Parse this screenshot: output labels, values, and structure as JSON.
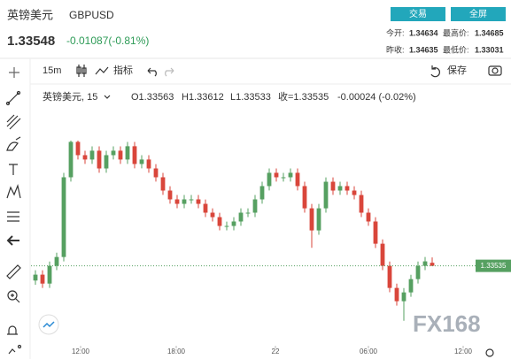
{
  "header": {
    "name": "英镑美元",
    "symbol": "GBPUSD",
    "price": "1.33548",
    "change": "-0.01087(-0.81%)",
    "buttons": [
      "交易",
      "全屏"
    ],
    "stats": [
      [
        "今开:",
        "1.34634",
        "最高价:",
        "1.34685"
      ],
      [
        "昨收:",
        "1.34635",
        "最低价:",
        "1.33031"
      ]
    ]
  },
  "toolbar": {
    "interval": "15m",
    "indicators": "指标",
    "save": "保存"
  },
  "watermark": "FX168",
  "chart_data": {
    "type": "candlestick",
    "legend": {
      "name": "英镑美元, 15",
      "open": "O1.33563",
      "high": "H1.33612",
      "low": "L1.33533",
      "close": "收=1.33535",
      "change": "-0.00024 (-0.02%)"
    },
    "up_color": "#56a061",
    "down_color": "#d9463b",
    "open": [
      1.334,
      1.33454,
      1.33372,
      1.33535,
      1.33616,
      1.34348,
      1.34673,
      1.34551,
      1.34511,
      1.34592,
      1.34429,
      1.34551,
      1.34592,
      1.34511,
      1.34633,
      1.3447,
      1.34511,
      1.34429,
      1.34348,
      1.34226,
      1.34145,
      1.34104,
      1.34145,
      1.34145,
      1.34104,
      1.34023,
      1.33982,
      1.33901,
      1.33901,
      1.33942,
      1.34023,
      1.34023,
      1.34145,
      1.34267,
      1.34389,
      1.34348,
      1.34348,
      1.34389,
      1.34267,
      1.34063,
      1.3386,
      1.34063,
      1.34307,
      1.34226,
      1.34267,
      1.34226,
      1.34185,
      1.34023,
      1.33942,
      1.33738,
      1.33535,
      1.33332,
      1.3321,
      1.33291,
      1.33413,
      1.33535,
      1.33563
    ],
    "high": [
      1.33494,
      1.33494,
      1.33575,
      1.33656,
      1.34388,
      1.34685,
      1.34685,
      1.34591,
      1.34632,
      1.34632,
      1.34591,
      1.34632,
      1.34632,
      1.34673,
      1.34673,
      1.34551,
      1.34551,
      1.34469,
      1.34388,
      1.34266,
      1.34185,
      1.34185,
      1.34185,
      1.34185,
      1.34144,
      1.34063,
      1.34022,
      1.33941,
      1.33982,
      1.34063,
      1.34063,
      1.34185,
      1.34307,
      1.34429,
      1.34429,
      1.34388,
      1.34429,
      1.34429,
      1.34307,
      1.34103,
      1.34103,
      1.34347,
      1.34347,
      1.34307,
      1.34307,
      1.34266,
      1.34225,
      1.34063,
      1.33982,
      1.33778,
      1.33575,
      1.33372,
      1.33331,
      1.33453,
      1.33575,
      1.33616,
      1.33612
    ],
    "low": [
      1.3336,
      1.33332,
      1.33332,
      1.33495,
      1.33576,
      1.34308,
      1.34511,
      1.34471,
      1.34471,
      1.34389,
      1.34389,
      1.34511,
      1.34471,
      1.34471,
      1.3443,
      1.3443,
      1.34389,
      1.34308,
      1.34186,
      1.34105,
      1.34064,
      1.34064,
      1.34105,
      1.34064,
      1.33983,
      1.33942,
      1.33861,
      1.33861,
      1.33861,
      1.33902,
      1.33983,
      1.33983,
      1.34105,
      1.34227,
      1.34308,
      1.34308,
      1.34308,
      1.34227,
      1.34023,
      1.337,
      1.3382,
      1.34023,
      1.34186,
      1.34186,
      1.34186,
      1.34145,
      1.33983,
      1.33902,
      1.33698,
      1.33495,
      1.33292,
      1.3317,
      1.33031,
      1.33251,
      1.33373,
      1.33495,
      1.33533
    ],
    "close": [
      1.33454,
      1.33372,
      1.33535,
      1.33616,
      1.34348,
      1.34673,
      1.34551,
      1.34511,
      1.34592,
      1.34429,
      1.34551,
      1.34592,
      1.34511,
      1.34633,
      1.3447,
      1.34511,
      1.34429,
      1.34348,
      1.34226,
      1.34145,
      1.34104,
      1.34145,
      1.34145,
      1.34104,
      1.34023,
      1.33982,
      1.33901,
      1.33901,
      1.33942,
      1.34023,
      1.34023,
      1.34145,
      1.34267,
      1.34389,
      1.34348,
      1.34348,
      1.34389,
      1.34267,
      1.34063,
      1.3386,
      1.34063,
      1.34307,
      1.34226,
      1.34267,
      1.34226,
      1.34185,
      1.34023,
      1.33942,
      1.33738,
      1.33535,
      1.33332,
      1.3321,
      1.33291,
      1.33413,
      1.33535,
      1.33576,
      1.33535
    ],
    "last_price": 1.33535,
    "xlim": [
      -0.625,
      61.875
    ],
    "ylim": [
      1.3285,
      1.3518
    ],
    "xticks": [
      {
        "value": 6.375,
        "label": "12:00"
      },
      {
        "value": 19.875,
        "label": "18:00"
      },
      {
        "value": 33.875,
        "label": "22"
      },
      {
        "value": 47,
        "label": "06:00"
      },
      {
        "value": 60.375,
        "label": "12:00"
      }
    ]
  }
}
